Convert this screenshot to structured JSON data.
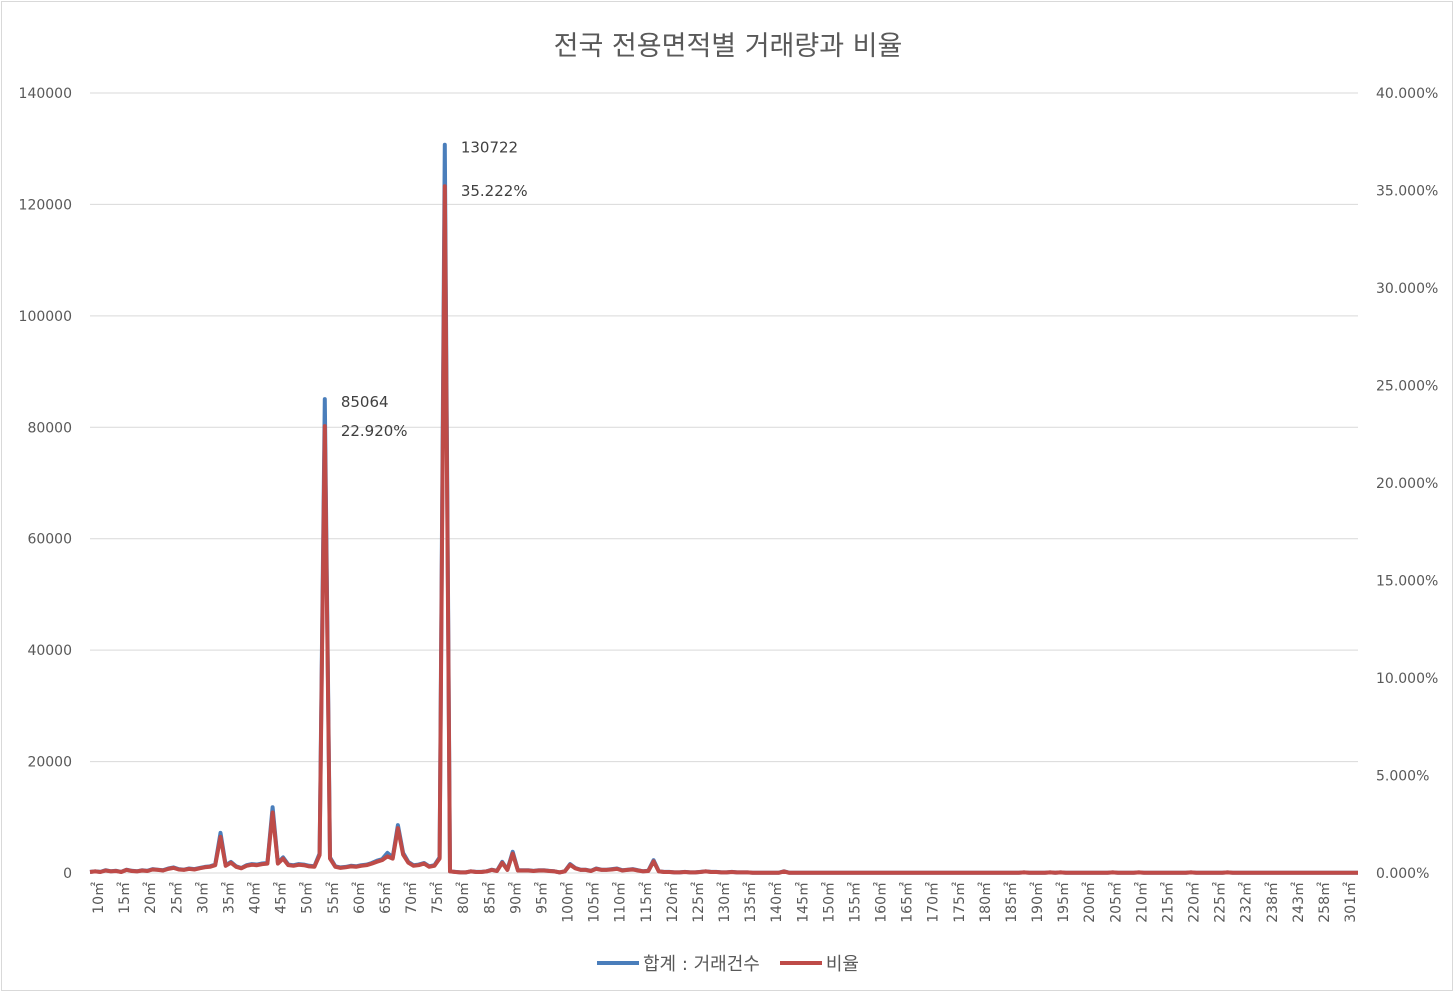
{
  "chart_data": {
    "type": "line",
    "title": "전국 전용면적별 거래량과 비율",
    "xlabel": "",
    "ylabel": "",
    "y_left_lim": [
      0,
      140000
    ],
    "y_left_ticks": [
      "0",
      "20000",
      "40000",
      "60000",
      "80000",
      "100000",
      "120000",
      "140000"
    ],
    "y_right_lim": [
      0,
      40
    ],
    "y_right_ticks": [
      "0.000%",
      "5.000%",
      "10.000%",
      "15.000%",
      "20.000%",
      "25.000%",
      "30.000%",
      "35.000%",
      "40.000%"
    ],
    "x_tick_labels": [
      "10㎡",
      "15㎡",
      "20㎡",
      "25㎡",
      "30㎡",
      "35㎡",
      "40㎡",
      "45㎡",
      "50㎡",
      "55㎡",
      "60㎡",
      "65㎡",
      "70㎡",
      "75㎡",
      "80㎡",
      "85㎡",
      "90㎡",
      "95㎡",
      "100㎡",
      "105㎡",
      "110㎡",
      "115㎡",
      "120㎡",
      "125㎡",
      "130㎡",
      "135㎡",
      "140㎡",
      "145㎡",
      "150㎡",
      "155㎡",
      "160㎡",
      "165㎡",
      "170㎡",
      "175㎡",
      "180㎡",
      "185㎡",
      "190㎡",
      "195㎡",
      "200㎡",
      "205㎡",
      "210㎡",
      "215㎡",
      "220㎡",
      "225㎡",
      "232㎡",
      "238㎡",
      "243㎡",
      "258㎡",
      "301㎡"
    ],
    "grid": true,
    "legend_position": "bottom",
    "series": [
      {
        "name": "합계 : 거래건수",
        "axis": "left",
        "color": "#4a7ebb",
        "values": [
          200,
          300,
          200,
          500,
          300,
          400,
          200,
          600,
          400,
          300,
          500,
          400,
          700,
          600,
          500,
          800,
          1000,
          700,
          600,
          800,
          700,
          900,
          1100,
          1200,
          1500,
          7200,
          1400,
          2000,
          1200,
          900,
          1400,
          1600,
          1500,
          1700,
          1800,
          11800,
          1800,
          2800,
          1500,
          1400,
          1600,
          1500,
          1300,
          1200,
          3500,
          85064,
          2800,
          1200,
          1000,
          1100,
          1300,
          1200,
          1400,
          1500,
          1800,
          2200,
          2500,
          3600,
          2800,
          8600,
          3600,
          2000,
          1400,
          1500,
          1800,
          1200,
          1400,
          2800,
          130722,
          300,
          200,
          100,
          100,
          300,
          200,
          200,
          300,
          600,
          400,
          2000,
          600,
          3800,
          500,
          500,
          500,
          400,
          500,
          500,
          400,
          300,
          100,
          300,
          1600,
          900,
          600,
          600,
          400,
          800,
          600,
          600,
          700,
          800,
          500,
          600,
          700,
          500,
          300,
          400,
          2300,
          300,
          200,
          200,
          100,
          100,
          200,
          100,
          100,
          200,
          300,
          200,
          200,
          100,
          100,
          200,
          100,
          100,
          100,
          50,
          50,
          50,
          50,
          50,
          50,
          300,
          50,
          50,
          50,
          50,
          50,
          50,
          50,
          50,
          50,
          50,
          50,
          50,
          50,
          50,
          50,
          50,
          50,
          50,
          50,
          50,
          50,
          50,
          50,
          50,
          50,
          50,
          50,
          50,
          50,
          50,
          50,
          50,
          50,
          50,
          50,
          50,
          50,
          50,
          50,
          50,
          50,
          50,
          50,
          50,
          50,
          100,
          50,
          50,
          50,
          50,
          100,
          50,
          100,
          50,
          50,
          50,
          50,
          50,
          50,
          50,
          50,
          50,
          100,
          50,
          50,
          50,
          50,
          100,
          50,
          50,
          50,
          50,
          50,
          50,
          50,
          50,
          50,
          100,
          50,
          50,
          50,
          50,
          50,
          50,
          100,
          50,
          50,
          50,
          50,
          50,
          50,
          50,
          50,
          50,
          50,
          50,
          50,
          50,
          50,
          50,
          50,
          50,
          50,
          50,
          50,
          50,
          50,
          50,
          50,
          50
        ],
        "labels": [
          {
            "index": 45,
            "text": "85064"
          },
          {
            "index": 68,
            "text": "130722"
          }
        ]
      },
      {
        "name": "비율",
        "axis": "right",
        "color": "#be4b48",
        "values": [
          0.05,
          0.08,
          0.05,
          0.13,
          0.08,
          0.1,
          0.05,
          0.16,
          0.1,
          0.08,
          0.13,
          0.1,
          0.18,
          0.16,
          0.13,
          0.21,
          0.26,
          0.18,
          0.16,
          0.21,
          0.18,
          0.24,
          0.29,
          0.32,
          0.4,
          1.85,
          0.37,
          0.53,
          0.32,
          0.24,
          0.37,
          0.42,
          0.4,
          0.45,
          0.48,
          3.1,
          0.48,
          0.74,
          0.4,
          0.37,
          0.42,
          0.4,
          0.34,
          0.32,
          0.92,
          22.92,
          0.74,
          0.32,
          0.26,
          0.29,
          0.34,
          0.32,
          0.37,
          0.4,
          0.48,
          0.58,
          0.66,
          0.85,
          0.74,
          2.3,
          0.95,
          0.53,
          0.37,
          0.4,
          0.48,
          0.32,
          0.37,
          0.74,
          35.222,
          0.08,
          0.05,
          0.03,
          0.03,
          0.08,
          0.05,
          0.05,
          0.08,
          0.16,
          0.1,
          0.53,
          0.16,
          1.0,
          0.13,
          0.13,
          0.13,
          0.1,
          0.13,
          0.13,
          0.1,
          0.08,
          0.03,
          0.08,
          0.42,
          0.24,
          0.16,
          0.16,
          0.1,
          0.21,
          0.16,
          0.16,
          0.18,
          0.21,
          0.13,
          0.16,
          0.18,
          0.13,
          0.08,
          0.1,
          0.6,
          0.08,
          0.05,
          0.05,
          0.03,
          0.03,
          0.05,
          0.03,
          0.03,
          0.05,
          0.08,
          0.05,
          0.05,
          0.03,
          0.03,
          0.05,
          0.03,
          0.03,
          0.03,
          0.01,
          0.01,
          0.01,
          0.01,
          0.01,
          0.01,
          0.08,
          0.01,
          0.01,
          0.01,
          0.01,
          0.01,
          0.01,
          0.01,
          0.01,
          0.01,
          0.01,
          0.01,
          0.01,
          0.01,
          0.01,
          0.01,
          0.01,
          0.01,
          0.01,
          0.01,
          0.01,
          0.01,
          0.01,
          0.01,
          0.01,
          0.01,
          0.01,
          0.01,
          0.01,
          0.01,
          0.01,
          0.01,
          0.01,
          0.01,
          0.01,
          0.01,
          0.01,
          0.01,
          0.01,
          0.01,
          0.01,
          0.01,
          0.01,
          0.01,
          0.01,
          0.01,
          0.03,
          0.01,
          0.01,
          0.01,
          0.01,
          0.03,
          0.01,
          0.03,
          0.01,
          0.01,
          0.01,
          0.01,
          0.01,
          0.01,
          0.01,
          0.01,
          0.01,
          0.03,
          0.01,
          0.01,
          0.01,
          0.01,
          0.03,
          0.01,
          0.01,
          0.01,
          0.01,
          0.01,
          0.01,
          0.01,
          0.01,
          0.01,
          0.03,
          0.01,
          0.01,
          0.01,
          0.01,
          0.01,
          0.01,
          0.03,
          0.01,
          0.01,
          0.01,
          0.01,
          0.01,
          0.01,
          0.01,
          0.01,
          0.01,
          0.01,
          0.01,
          0.01,
          0.01,
          0.01,
          0.01,
          0.01,
          0.01,
          0.01,
          0.01,
          0.01,
          0.01,
          0.01,
          0.01,
          0.01,
          0.01
        ],
        "labels": [
          {
            "index": 45,
            "text": "22.920%"
          },
          {
            "index": 68,
            "text": "35.222%"
          }
        ]
      }
    ]
  },
  "legend": {
    "series1": "합계 : 거래건수",
    "series2": "비율"
  }
}
